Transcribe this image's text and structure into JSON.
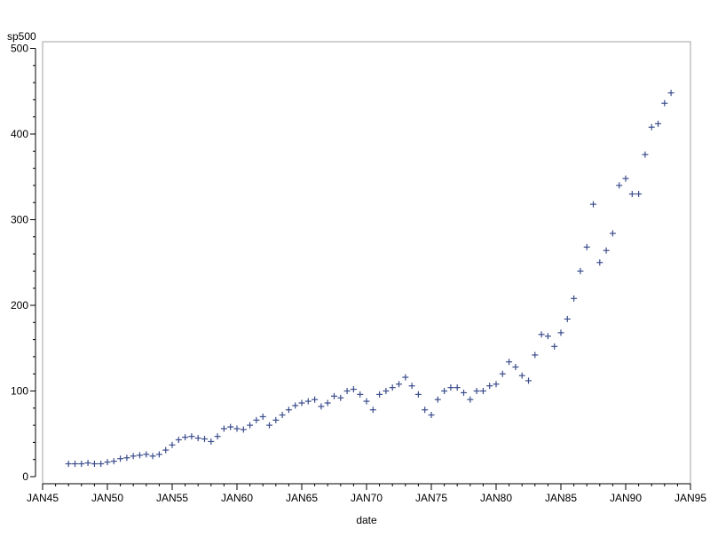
{
  "chart_data": {
    "type": "scatter",
    "xlabel": "date",
    "ylabel": "sp500",
    "xlim": [
      1945,
      1995
    ],
    "ylim": [
      0,
      500
    ],
    "x_ticks": [
      1945,
      1950,
      1955,
      1960,
      1965,
      1970,
      1975,
      1980,
      1985,
      1990,
      1995
    ],
    "x_tick_labels": [
      "JAN45",
      "JAN50",
      "JAN55",
      "JAN60",
      "JAN65",
      "JAN70",
      "JAN75",
      "JAN80",
      "JAN85",
      "JAN90",
      "JAN95"
    ],
    "y_ticks": [
      0,
      100,
      200,
      300,
      400,
      500
    ],
    "y_tick_labels": [
      "0",
      "100",
      "200",
      "300",
      "400",
      "500"
    ],
    "grid": false,
    "legend": "none",
    "marker": "plus",
    "marker_color": "#3b4c8c",
    "series": [
      {
        "x": [
          1947.0,
          1947.5,
          1948.0,
          1948.5,
          1949.0,
          1949.5,
          1950.0,
          1950.5,
          1951.0,
          1951.5,
          1952.0,
          1952.5,
          1953.0,
          1953.5,
          1954.0,
          1954.5,
          1955.0,
          1955.5,
          1956.0,
          1956.5,
          1957.0,
          1957.5,
          1958.0,
          1958.5,
          1959.0,
          1959.5,
          1960.0,
          1960.5,
          1961.0,
          1961.5,
          1962.0,
          1962.5,
          1963.0,
          1963.5,
          1964.0,
          1964.5,
          1965.0,
          1965.5,
          1966.0,
          1966.5,
          1967.0,
          1967.5,
          1968.0,
          1968.5,
          1969.0,
          1969.5,
          1970.0,
          1970.5,
          1971.0,
          1971.5,
          1972.0,
          1972.5,
          1973.0,
          1973.5,
          1974.0,
          1974.5,
          1975.0,
          1975.5,
          1976.0,
          1976.5,
          1977.0,
          1977.5,
          1978.0,
          1978.5,
          1979.0,
          1979.5,
          1980.0,
          1980.5,
          1981.0,
          1981.5,
          1982.0,
          1982.5,
          1983.0,
          1983.5,
          1984.0,
          1984.5,
          1985.0,
          1985.5,
          1986.0,
          1986.5,
          1987.0,
          1987.5,
          1988.0,
          1988.5,
          1989.0,
          1989.5,
          1990.0,
          1990.5,
          1991.0,
          1991.5,
          1992.0,
          1992.5,
          1993.0,
          1993.5
        ],
        "y": [
          15,
          15,
          15,
          16,
          15,
          15,
          17,
          18,
          21,
          22,
          24,
          25,
          26,
          24,
          26,
          31,
          37,
          43,
          46,
          47,
          45,
          44,
          41,
          47,
          56,
          58,
          56,
          55,
          60,
          66,
          70,
          60,
          66,
          72,
          78,
          83,
          86,
          88,
          90,
          82,
          86,
          94,
          92,
          100,
          102,
          96,
          88,
          78,
          96,
          100,
          104,
          108,
          116,
          106,
          96,
          78,
          72,
          90,
          100,
          104,
          104,
          98,
          90,
          100,
          100,
          106,
          108,
          120,
          134,
          128,
          118,
          112,
          142,
          166,
          164,
          152,
          168,
          184,
          208,
          240,
          268,
          318,
          250,
          264,
          284,
          340,
          348,
          330,
          330,
          376,
          408,
          412,
          436,
          448
        ]
      }
    ]
  }
}
